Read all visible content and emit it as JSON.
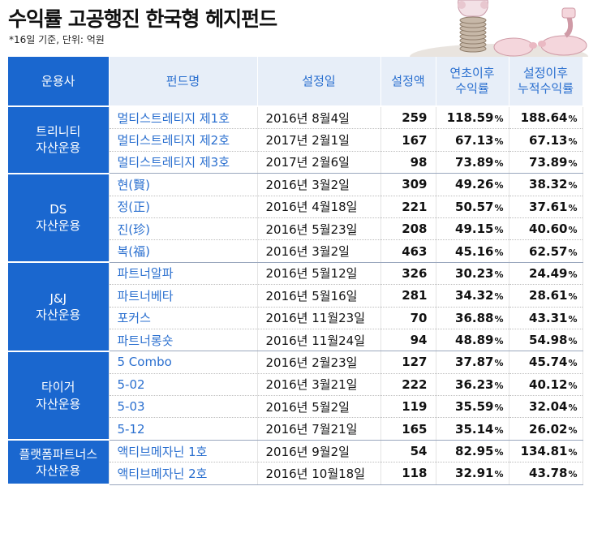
{
  "header": {
    "title": "수익률 고공행진 한국형 헤지펀드",
    "subtitle": "*16일 기준, 단위: 억원"
  },
  "chart_data": {
    "type": "table",
    "columns": [
      "운용사",
      "펀드명",
      "설정일",
      "설정액",
      "연초이후 수익률",
      "설정이후 누적수익률"
    ],
    "column_lines": [
      [
        "운용사"
      ],
      [
        "펀드명"
      ],
      [
        "설정일"
      ],
      [
        "설정액"
      ],
      [
        "연초이후",
        "수익률"
      ],
      [
        "설정이후",
        "누적수익률"
      ]
    ],
    "percent_symbol": "%",
    "groups": [
      {
        "company": [
          "트리니티",
          "자산운용"
        ],
        "rows": [
          {
            "fund": "멀티스트레티지 제1호",
            "date": "2016년 8월4일",
            "amount": 259,
            "ytd": "118.59",
            "cum": "188.64"
          },
          {
            "fund": "멀티스트레티지 제2호",
            "date": "2017년 2월1일",
            "amount": 167,
            "ytd": "67.13",
            "cum": "67.13"
          },
          {
            "fund": "멀티스트레티지 제3호",
            "date": "2017년 2월6일",
            "amount": 98,
            "ytd": "73.89",
            "cum": "73.89"
          }
        ]
      },
      {
        "company": [
          "DS",
          "자산운용"
        ],
        "rows": [
          {
            "fund": "현(賢)",
            "date": "2016년 3월2일",
            "amount": 309,
            "ytd": "49.26",
            "cum": "38.32"
          },
          {
            "fund": "정(正)",
            "date": "2016년 4월18일",
            "amount": 221,
            "ytd": "50.57",
            "cum": "37.61"
          },
          {
            "fund": "진(珍)",
            "date": "2016년 5월23일",
            "amount": 208,
            "ytd": "49.15",
            "cum": "40.60"
          },
          {
            "fund": "복(福)",
            "date": "2016년 3월2일",
            "amount": 463,
            "ytd": "45.16",
            "cum": "62.57"
          }
        ]
      },
      {
        "company": [
          "J&J",
          "자산운용"
        ],
        "rows": [
          {
            "fund": "파트너알파",
            "date": "2016년 5월12일",
            "amount": 326,
            "ytd": "30.23",
            "cum": "24.49"
          },
          {
            "fund": "파트너베타",
            "date": "2016년 5월16일",
            "amount": 281,
            "ytd": "34.32",
            "cum": "28.61"
          },
          {
            "fund": "포커스",
            "date": "2016년 11월23일",
            "amount": 70,
            "ytd": "36.88",
            "cum": "43.31"
          },
          {
            "fund": "파트너롱숏",
            "date": "2016년 11월24일",
            "amount": 94,
            "ytd": "48.89",
            "cum": "54.98"
          }
        ]
      },
      {
        "company": [
          "타이거",
          "자산운용"
        ],
        "rows": [
          {
            "fund": "5 Combo",
            "date": "2016년 2월23일",
            "amount": 127,
            "ytd": "37.87",
            "cum": "45.74"
          },
          {
            "fund": "5-02",
            "date": "2016년 3월21일",
            "amount": 222,
            "ytd": "36.23",
            "cum": "40.12"
          },
          {
            "fund": "5-03",
            "date": "2016년 5월2일",
            "amount": 119,
            "ytd": "35.59",
            "cum": "32.04"
          },
          {
            "fund": "5-12",
            "date": "2016년 7월21일",
            "amount": 165,
            "ytd": "35.14",
            "cum": "26.02"
          }
        ]
      },
      {
        "company": [
          "플랫폼파트너스",
          "자산운용"
        ],
        "rows": [
          {
            "fund": "액티브메자닌 1호",
            "date": "2016년 9월2일",
            "amount": 54,
            "ytd": "82.95",
            "cum": "134.81"
          },
          {
            "fund": "액티브메자닌 2호",
            "date": "2016년 10월18일",
            "amount": 118,
            "ytd": "32.91",
            "cum": "43.78"
          }
        ]
      }
    ]
  },
  "colors": {
    "header_blue": "#1a67cf",
    "header_light": "#e7eef8",
    "fund_text": "#2a6fcf"
  },
  "icons": {
    "illustration": "piggy-bank-coins-illustration"
  }
}
